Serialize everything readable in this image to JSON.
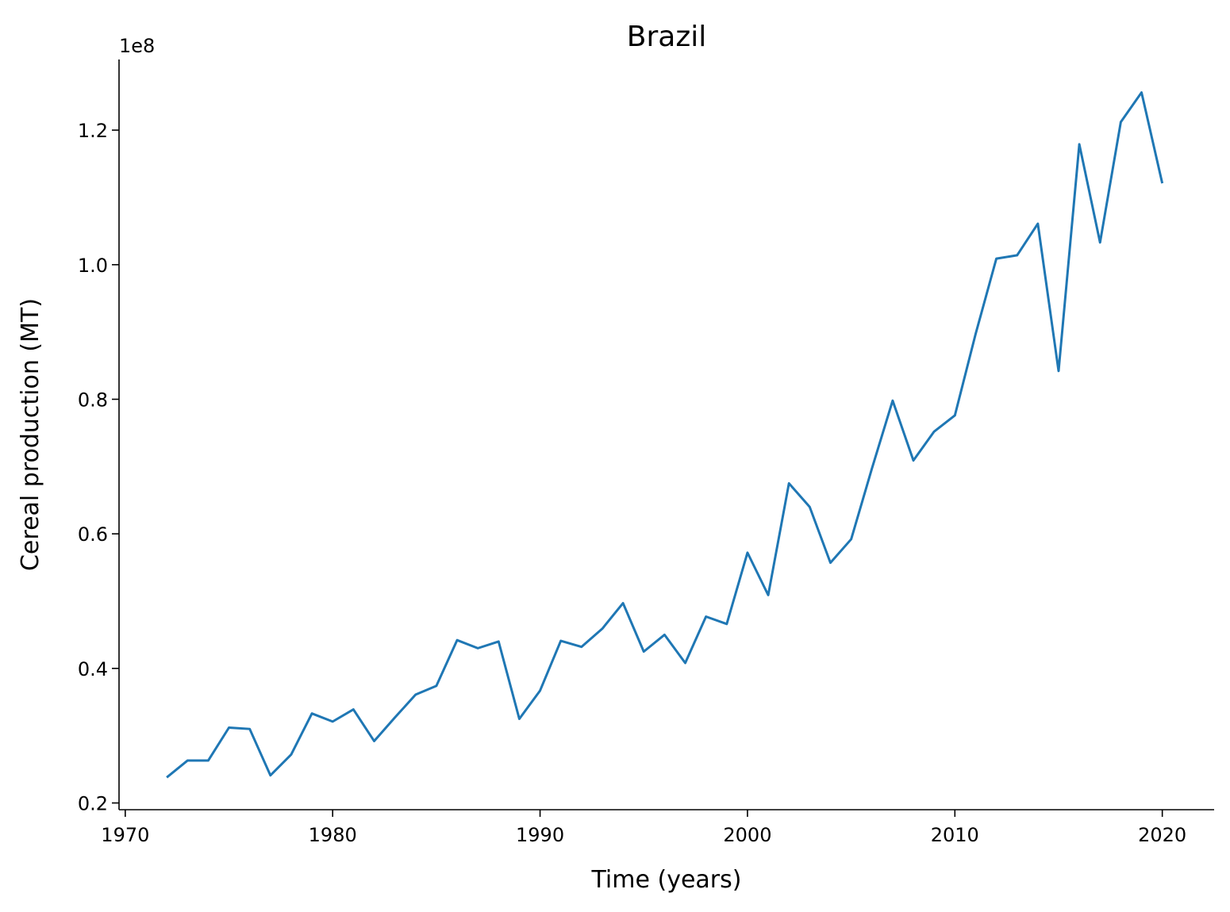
{
  "chart_data": {
    "type": "line",
    "title": "Brazil",
    "xlabel": "Time (years)",
    "ylabel": "Cereal production (MT)",
    "y_offset_label": "1e8",
    "xlim": [
      1969.7,
      2022.5
    ],
    "ylim": [
      0.19,
      1.305
    ],
    "x_ticks": [
      1970,
      1980,
      1990,
      2000,
      2010,
      2020
    ],
    "x_tick_labels": [
      "1970",
      "1980",
      "1990",
      "2000",
      "2010",
      "2020"
    ],
    "y_ticks": [
      0.2,
      0.4,
      0.6,
      0.8,
      1.0,
      1.2
    ],
    "y_tick_labels": [
      "0.2",
      "0.4",
      "0.6",
      "0.8",
      "1.0",
      "1.2"
    ],
    "grid": false,
    "series": [
      {
        "color": "#1f77b4",
        "x": [
          1972,
          1973,
          1974,
          1975,
          1976,
          1977,
          1978,
          1979,
          1980,
          1981,
          1982,
          1983,
          1984,
          1985,
          1986,
          1987,
          1988,
          1989,
          1990,
          1991,
          1992,
          1993,
          1994,
          1995,
          1996,
          1997,
          1998,
          1999,
          2000,
          2001,
          2002,
          2003,
          2004,
          2005,
          2006,
          2007,
          2008,
          2009,
          2010,
          2011,
          2012,
          2013,
          2014,
          2015,
          2016,
          2017,
          2018,
          2019,
          2020
        ],
        "y": [
          0.238,
          0.263,
          0.263,
          0.312,
          0.31,
          0.241,
          0.272,
          0.333,
          0.321,
          0.339,
          0.292,
          0.327,
          0.361,
          0.374,
          0.442,
          0.43,
          0.44,
          0.325,
          0.367,
          0.441,
          0.432,
          0.459,
          0.497,
          0.425,
          0.45,
          0.408,
          0.477,
          0.466,
          0.572,
          0.509,
          0.675,
          0.64,
          0.557,
          0.592,
          0.697,
          0.798,
          0.709,
          0.752,
          0.776,
          0.897,
          1.009,
          1.014,
          1.061,
          0.842,
          1.179,
          1.033,
          1.212,
          1.256,
          1.121
        ]
      }
    ]
  }
}
